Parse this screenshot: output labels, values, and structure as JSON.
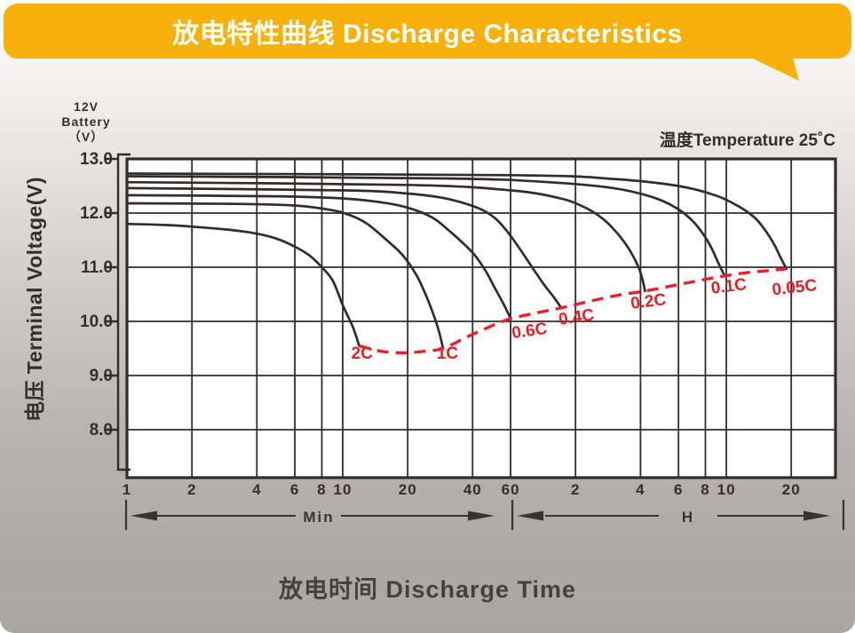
{
  "banner": {
    "title": "放电特性曲线 Discharge Characteristics",
    "bg_color": "#F7B10A",
    "title_color": "#FFFFFF"
  },
  "labels": {
    "temperature_note": "温度Temperature 25˚C",
    "battery_line1": "12V",
    "battery_line2": "Battery",
    "battery_line3": "（V）",
    "y_axis_label": "电压 Terminal Voltage(V)",
    "x_axis_title": "放电时间 Discharge Time"
  },
  "chart_data": {
    "type": "line",
    "title": "放电特性曲线 Discharge Characteristics",
    "xlabel": "放电时间 Discharge Time",
    "ylabel": "电压 Terminal Voltage(V)",
    "x_scale": "log",
    "x_range_minutes": [
      1,
      1900
    ],
    "ylim": [
      7.2,
      13.0
    ],
    "temperature": "25˚C",
    "grid": true,
    "colors": {
      "curve": "#332B2C",
      "grid": "#332B2C",
      "cutoff": "#E8212B",
      "label_red": "#ED1C24",
      "text": "#352E2F"
    },
    "y_ticks": [
      {
        "v": 13.0,
        "label": "13.0"
      },
      {
        "v": 12.0,
        "label": "12.0"
      },
      {
        "v": 11.0,
        "label": "11.0"
      },
      {
        "v": 10.0,
        "label": "10.0"
      },
      {
        "v": 9.0,
        "label": "9.0"
      },
      {
        "v": 8.0,
        "label": "8.0"
      }
    ],
    "x_ticks": [
      {
        "t": 1,
        "label": "1"
      },
      {
        "t": 2,
        "label": "2"
      },
      {
        "t": 4,
        "label": "4"
      },
      {
        "t": 6,
        "label": "6"
      },
      {
        "t": 8,
        "label": "8"
      },
      {
        "t": 10,
        "label": "10"
      },
      {
        "t": 20,
        "label": "20"
      },
      {
        "t": 40,
        "label": "40"
      },
      {
        "t": 60,
        "label": "60"
      },
      {
        "t": 120,
        "label": "2"
      },
      {
        "t": 240,
        "label": "4"
      },
      {
        "t": 360,
        "label": "6"
      },
      {
        "t": 480,
        "label": "8"
      },
      {
        "t": 600,
        "label": "10"
      },
      {
        "t": 1200,
        "label": "20"
      }
    ],
    "range_arrows": [
      {
        "label": "Min"
      },
      {
        "label": "H"
      }
    ],
    "series": [
      {
        "name": "2C",
        "label_at": [
          12.3,
          9.31
        ],
        "label_tilt": 0,
        "points": [
          [
            1,
            11.8
          ],
          [
            1.5,
            11.78
          ],
          [
            2,
            11.75
          ],
          [
            3,
            11.69
          ],
          [
            4,
            11.62
          ],
          [
            5,
            11.52
          ],
          [
            6,
            11.38
          ],
          [
            7,
            11.22
          ],
          [
            8,
            11.0
          ],
          [
            9,
            10.75
          ],
          [
            10,
            10.3
          ],
          [
            11,
            9.95
          ],
          [
            11.5,
            9.75
          ],
          [
            11.9,
            9.55
          ]
        ]
      },
      {
        "name": "1C",
        "label_at": [
          30.6,
          9.31
        ],
        "label_tilt": 0,
        "points": [
          [
            1,
            12.18
          ],
          [
            3,
            12.17
          ],
          [
            6,
            12.14
          ],
          [
            9,
            12.05
          ],
          [
            11,
            11.95
          ],
          [
            13,
            11.8
          ],
          [
            16,
            11.5
          ],
          [
            19,
            11.22
          ],
          [
            22,
            10.85
          ],
          [
            24.5,
            10.45
          ],
          [
            26.5,
            10.1
          ],
          [
            28,
            9.8
          ],
          [
            29.2,
            9.5
          ]
        ]
      },
      {
        "name": "0.6C",
        "label_at": [
          74,
          9.73
        ],
        "label_tilt": -8,
        "points": [
          [
            1,
            12.33
          ],
          [
            5,
            12.31
          ],
          [
            10,
            12.27
          ],
          [
            15,
            12.2
          ],
          [
            20,
            12.1
          ],
          [
            26,
            11.92
          ],
          [
            31,
            11.68
          ],
          [
            36,
            11.45
          ],
          [
            41,
            11.22
          ],
          [
            46,
            10.93
          ],
          [
            51,
            10.6
          ],
          [
            56,
            10.3
          ],
          [
            60,
            10.05
          ]
        ]
      },
      {
        "name": "0.4C",
        "label_at": [
          122,
          9.98
        ],
        "label_tilt": -8,
        "points": [
          [
            1,
            12.46
          ],
          [
            10,
            12.42
          ],
          [
            20,
            12.36
          ],
          [
            30,
            12.27
          ],
          [
            42,
            12.1
          ],
          [
            50,
            11.93
          ],
          [
            56,
            11.73
          ],
          [
            62,
            11.5
          ],
          [
            68,
            11.27
          ],
          [
            77,
            10.95
          ],
          [
            85,
            10.7
          ],
          [
            95,
            10.45
          ],
          [
            103,
            10.25
          ]
        ]
      },
      {
        "name": "0.2C",
        "label_at": [
          263,
          10.27
        ],
        "label_tilt": -7,
        "points": [
          [
            1,
            12.57
          ],
          [
            20,
            12.52
          ],
          [
            60,
            12.42
          ],
          [
            100,
            12.28
          ],
          [
            130,
            12.12
          ],
          [
            160,
            11.9
          ],
          [
            190,
            11.6
          ],
          [
            215,
            11.3
          ],
          [
            235,
            11.0
          ],
          [
            246,
            10.75
          ],
          [
            252,
            10.56
          ]
        ]
      },
      {
        "name": "0.1C",
        "label_at": [
          620,
          10.55
        ],
        "label_tilt": -7,
        "points": [
          [
            1,
            12.68
          ],
          [
            30,
            12.64
          ],
          [
            90,
            12.57
          ],
          [
            180,
            12.46
          ],
          [
            270,
            12.3
          ],
          [
            350,
            12.1
          ],
          [
            420,
            11.85
          ],
          [
            480,
            11.55
          ],
          [
            520,
            11.3
          ],
          [
            555,
            11.05
          ],
          [
            590,
            10.84
          ]
        ]
      },
      {
        "name": "0.05C",
        "label_at": [
          1250,
          10.53
        ],
        "label_tilt": -6,
        "points": [
          [
            1,
            12.73
          ],
          [
            60,
            12.7
          ],
          [
            180,
            12.63
          ],
          [
            360,
            12.5
          ],
          [
            540,
            12.32
          ],
          [
            700,
            12.1
          ],
          [
            820,
            11.9
          ],
          [
            920,
            11.65
          ],
          [
            1000,
            11.42
          ],
          [
            1070,
            11.18
          ],
          [
            1140,
            10.97
          ]
        ]
      }
    ],
    "cutoff_line": {
      "name": "discharge-end-voltage",
      "style": "dashed",
      "points": [
        [
          11.9,
          9.55
        ],
        [
          15,
          9.45
        ],
        [
          19,
          9.42
        ],
        [
          24,
          9.45
        ],
        [
          29.2,
          9.5
        ],
        [
          38,
          9.72
        ],
        [
          48,
          9.9
        ],
        [
          60,
          10.05
        ],
        [
          80,
          10.16
        ],
        [
          103,
          10.25
        ],
        [
          150,
          10.4
        ],
        [
          200,
          10.5
        ],
        [
          252,
          10.56
        ],
        [
          350,
          10.67
        ],
        [
          470,
          10.77
        ],
        [
          590,
          10.84
        ],
        [
          750,
          10.9
        ],
        [
          950,
          10.94
        ],
        [
          1140,
          10.97
        ]
      ]
    }
  }
}
